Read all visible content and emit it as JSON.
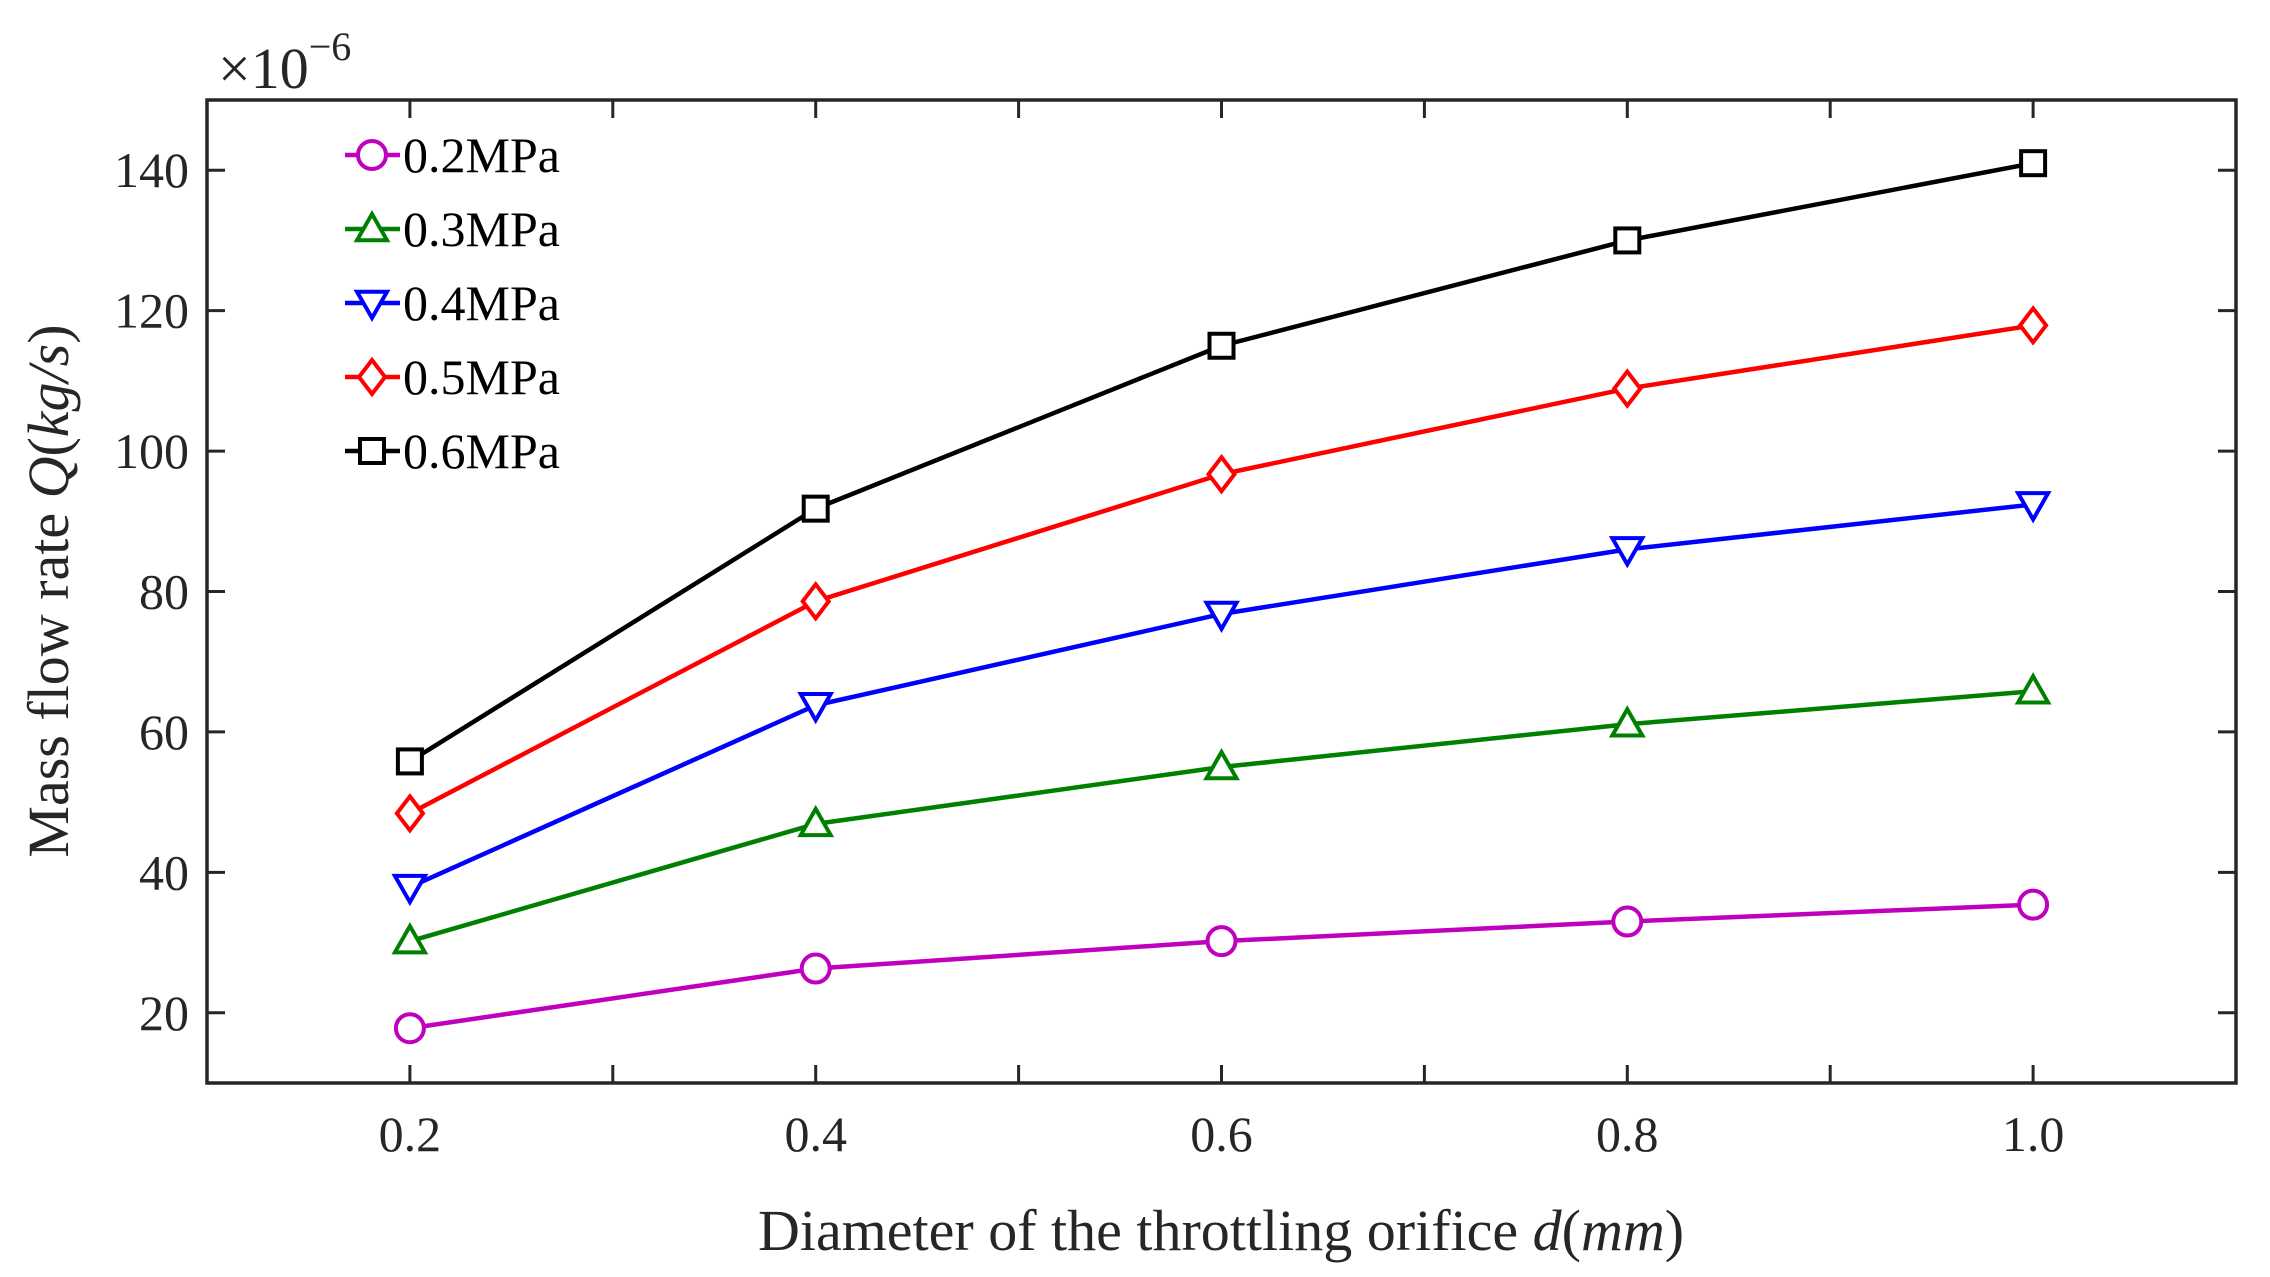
{
  "chart_data": {
    "type": "line",
    "title": "",
    "multiplier": {
      "prefix": "×10",
      "exponent": "−6"
    },
    "xlabel": {
      "prefix": "Diameter of the throttling orifice ",
      "var": "d",
      "unit": "mm"
    },
    "ylabel": {
      "prefix": "Mass flow rate ",
      "var": "Q",
      "unit": "kg/s"
    },
    "x": [
      0.2,
      0.4,
      0.6,
      0.8,
      1.0
    ],
    "xlim": [
      0.1,
      1.1
    ],
    "ylim": [
      10,
      150
    ],
    "xticks": [
      0.2,
      0.3,
      0.4,
      0.5,
      0.6,
      0.7,
      0.8,
      0.9,
      1.0
    ],
    "xtick_labels": [
      "0.2",
      "",
      "0.4",
      "",
      "0.6",
      "",
      "0.8",
      "",
      "1.0"
    ],
    "yticks": [
      20,
      40,
      60,
      80,
      100,
      120,
      140
    ],
    "ytick_labels": [
      "20",
      "40",
      "60",
      "80",
      "100",
      "120",
      "140"
    ],
    "grid": false,
    "legend_position": "top-left",
    "series": [
      {
        "name": "0.2MPa",
        "marker": "circle",
        "color": "#BF00BF",
        "values": [
          17.8,
          26.3,
          30.2,
          33.0,
          35.4
        ]
      },
      {
        "name": "0.3MPa",
        "marker": "triangle-up",
        "color": "#008000",
        "values": [
          30.2,
          46.9,
          55.0,
          61.1,
          65.8
        ]
      },
      {
        "name": "0.4MPa",
        "marker": "triangle-down",
        "color": "#0000FF",
        "values": [
          37.9,
          63.8,
          76.8,
          86.0,
          92.4
        ]
      },
      {
        "name": "0.5MPa",
        "marker": "diamond",
        "color": "#FF0000",
        "values": [
          48.4,
          78.6,
          96.7,
          108.9,
          117.9
        ]
      },
      {
        "name": "0.6MPa",
        "marker": "square",
        "color": "#000000",
        "values": [
          55.8,
          91.8,
          115.0,
          130.0,
          141.0
        ]
      }
    ]
  }
}
